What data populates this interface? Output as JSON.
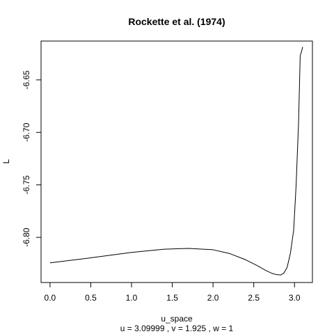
{
  "chart_data": {
    "type": "line",
    "title": "Rockette et al. (1974)",
    "xlabel": "u_space",
    "ylabel": "L",
    "subtitle": "u =  3.09999 , v =  1.925 , w =  1",
    "xlim": [
      -0.11,
      3.22
    ],
    "ylim": [
      -6.843,
      -6.613
    ],
    "x_ticks": [
      0.0,
      0.5,
      1.0,
      1.5,
      2.0,
      2.5,
      3.0
    ],
    "x_tick_labels": [
      "0.0",
      "0.5",
      "1.0",
      "1.5",
      "2.0",
      "2.5",
      "3.0"
    ],
    "y_ticks": [
      -6.65,
      -6.7,
      -6.75,
      -6.8
    ],
    "y_tick_labels": [
      "-6.65",
      "-6.70",
      "-6.75",
      "-6.80"
    ],
    "grid": false,
    "series": [
      {
        "color": "#000000",
        "x": [
          0.0,
          0.5,
          1.0,
          1.4,
          1.7,
          2.0,
          2.2,
          2.4,
          2.55,
          2.65,
          2.72,
          2.78,
          2.83,
          2.87,
          2.91,
          2.95,
          2.99,
          3.02,
          3.05,
          3.07,
          3.09,
          3.1
        ],
        "y": [
          -6.8243,
          -6.8195,
          -6.8143,
          -6.8113,
          -6.8105,
          -6.8118,
          -6.8153,
          -6.8213,
          -6.8272,
          -6.8316,
          -6.8342,
          -6.8355,
          -6.8358,
          -6.834,
          -6.8285,
          -6.815,
          -6.793,
          -6.75,
          -6.69,
          -6.627,
          -6.622,
          -6.6185
        ]
      }
    ]
  }
}
